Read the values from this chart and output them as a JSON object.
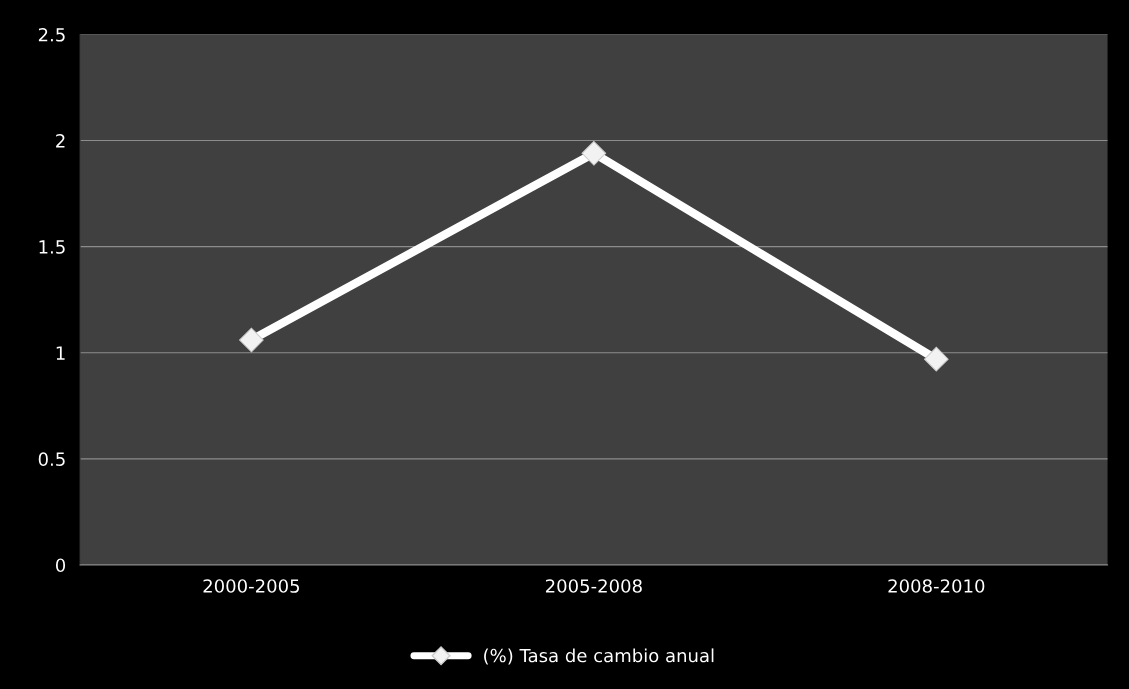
{
  "chart_data": {
    "type": "line",
    "categories": [
      "2000-2005",
      "2005-2008",
      "2008-2010"
    ],
    "series": [
      {
        "name": "(%) Tasa de cambio anual",
        "color": "#ffffff",
        "values": [
          1.06,
          1.94,
          0.97
        ]
      }
    ],
    "ylim": [
      0,
      2.5
    ],
    "yticks": [
      0,
      0.5,
      1,
      1.5,
      2,
      2.5
    ],
    "grid": "y",
    "legend": "bottom",
    "marker": "diamond",
    "line_style": "solid"
  }
}
